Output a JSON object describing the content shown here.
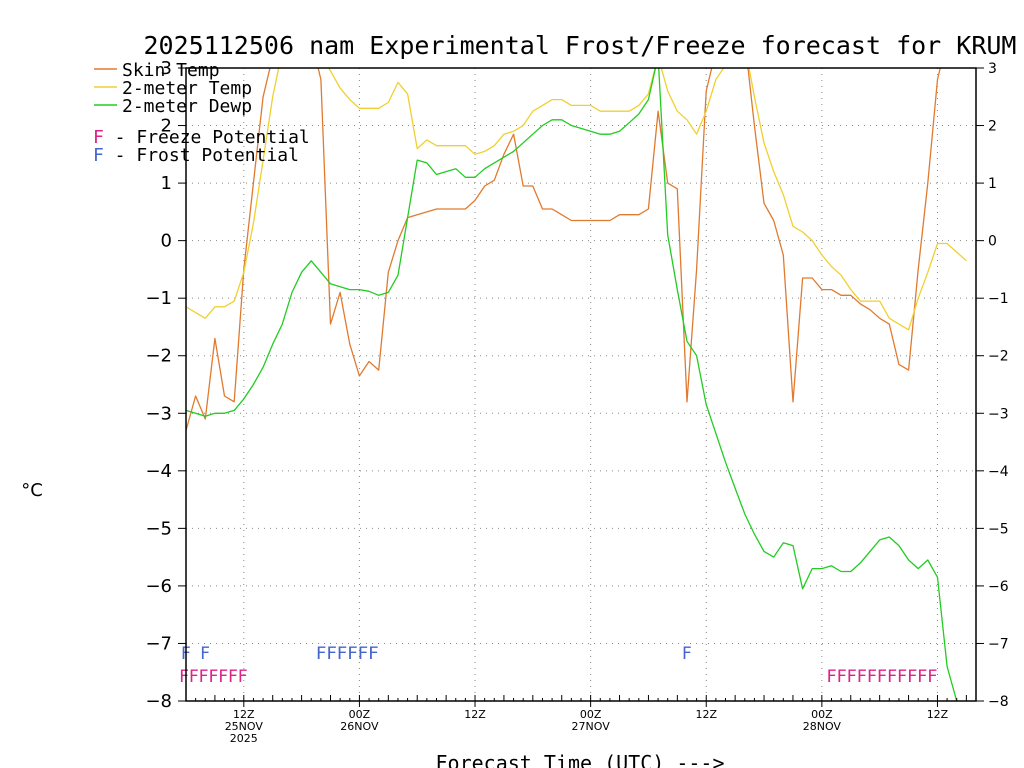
{
  "chart_data": {
    "type": "line",
    "title": "2025112506 nam Experimental Frost/Freeze forecast for KRUM",
    "ylabel": "°C",
    "xlabel": "Forecast Time (UTC) --->",
    "ylim": [
      -8,
      3
    ],
    "xlim": [
      0,
      82
    ],
    "y_ticks": [
      3,
      2,
      1,
      0,
      -1,
      -2,
      -3,
      -4,
      -5,
      -6,
      -7,
      -8
    ],
    "x_ticks": [
      {
        "hour": 6,
        "lines": [
          "12Z",
          "25NOV",
          "2025"
        ]
      },
      {
        "hour": 18,
        "lines": [
          "00Z",
          "26NOV"
        ]
      },
      {
        "hour": 30,
        "lines": [
          "12Z"
        ]
      },
      {
        "hour": 42,
        "lines": [
          "00Z",
          "27NOV"
        ]
      },
      {
        "hour": 54,
        "lines": [
          "12Z"
        ]
      },
      {
        "hour": 66,
        "lines": [
          "00Z",
          "28NOV"
        ]
      },
      {
        "hour": 78,
        "lines": [
          "12Z"
        ]
      }
    ],
    "legend": [
      {
        "label": "Skin Temp",
        "color": "#e07a2e"
      },
      {
        "label": "2-meter Temp",
        "color": "#f0d030"
      },
      {
        "label": "2-meter Dewp",
        "color": "#22cc22"
      }
    ],
    "symbol_legend": [
      {
        "symbol": "F",
        "label": " - Freeze Potential",
        "color": "#dd2288"
      },
      {
        "symbol": "F",
        "label": " - Frost Potential",
        "color": "#4466cc"
      }
    ],
    "series": [
      {
        "name": "Skin Temp",
        "color": "#e07a2e",
        "points": [
          [
            0,
            -3.3
          ],
          [
            1,
            -2.7
          ],
          [
            2,
            -3.1
          ],
          [
            3,
            -1.7
          ],
          [
            4,
            -2.7
          ],
          [
            5,
            -2.8
          ],
          [
            6,
            -0.5
          ],
          [
            7,
            1.0
          ],
          [
            8,
            2.5
          ],
          [
            9,
            3.2
          ],
          [
            10,
            3.4
          ],
          [
            11,
            3.5
          ],
          [
            12,
            3.5
          ],
          [
            13,
            3.5
          ],
          [
            14,
            2.8
          ],
          [
            15,
            -1.45
          ],
          [
            16,
            -0.9
          ],
          [
            17,
            -1.8
          ],
          [
            18,
            -2.35
          ],
          [
            19,
            -2.1
          ],
          [
            20,
            -2.25
          ],
          [
            21,
            -0.55
          ],
          [
            22,
            0.0
          ],
          [
            23,
            0.4
          ],
          [
            24,
            0.45
          ],
          [
            25,
            0.5
          ],
          [
            26,
            0.55
          ],
          [
            27,
            0.55
          ],
          [
            28,
            0.55
          ],
          [
            29,
            0.55
          ],
          [
            30,
            0.7
          ],
          [
            31,
            0.95
          ],
          [
            32,
            1.05
          ],
          [
            33,
            1.5
          ],
          [
            34,
            1.85
          ],
          [
            35,
            0.95
          ],
          [
            36,
            0.95
          ],
          [
            37,
            0.55
          ],
          [
            38,
            0.55
          ],
          [
            39,
            0.45
          ],
          [
            40,
            0.35
          ],
          [
            41,
            0.35
          ],
          [
            42,
            0.35
          ],
          [
            43,
            0.35
          ],
          [
            44,
            0.35
          ],
          [
            45,
            0.45
          ],
          [
            46,
            0.45
          ],
          [
            47,
            0.45
          ],
          [
            48,
            0.55
          ],
          [
            49,
            2.25
          ],
          [
            50,
            1.0
          ],
          [
            51,
            0.9
          ],
          [
            52,
            -2.8
          ],
          [
            53,
            -0.5
          ],
          [
            54,
            2.6
          ],
          [
            55,
            3.3
          ],
          [
            56,
            3.5
          ],
          [
            57,
            3.5
          ],
          [
            58,
            3.5
          ],
          [
            59,
            2.0
          ],
          [
            60,
            0.65
          ],
          [
            61,
            0.35
          ],
          [
            62,
            -0.25
          ],
          [
            63,
            -2.8
          ],
          [
            64,
            -0.65
          ],
          [
            65,
            -0.65
          ],
          [
            66,
            -0.85
          ],
          [
            67,
            -0.85
          ],
          [
            68,
            -0.95
          ],
          [
            69,
            -0.95
          ],
          [
            70,
            -1.1
          ],
          [
            71,
            -1.2
          ],
          [
            72,
            -1.35
          ],
          [
            73,
            -1.45
          ],
          [
            74,
            -2.15
          ],
          [
            75,
            -2.25
          ],
          [
            76,
            -0.5
          ],
          [
            77,
            1.0
          ],
          [
            78,
            2.8
          ],
          [
            79,
            3.5
          ],
          [
            80,
            3.5
          ],
          [
            81,
            3.5
          ],
          [
            82,
            3.5
          ]
        ]
      },
      {
        "name": "2-meter Temp",
        "color": "#f0d030",
        "points": [
          [
            0,
            -1.15
          ],
          [
            1,
            -1.25
          ],
          [
            2,
            -1.35
          ],
          [
            3,
            -1.15
          ],
          [
            4,
            -1.15
          ],
          [
            5,
            -1.05
          ],
          [
            6,
            -0.55
          ],
          [
            7,
            0.3
          ],
          [
            8,
            1.4
          ],
          [
            9,
            2.5
          ],
          [
            10,
            3.3
          ],
          [
            11,
            3.5
          ],
          [
            12,
            3.5
          ],
          [
            13,
            3.5
          ],
          [
            14,
            3.2
          ],
          [
            15,
            2.95
          ],
          [
            16,
            2.65
          ],
          [
            17,
            2.45
          ],
          [
            18,
            2.3
          ],
          [
            19,
            2.3
          ],
          [
            20,
            2.3
          ],
          [
            21,
            2.4
          ],
          [
            22,
            2.75
          ],
          [
            23,
            2.55
          ],
          [
            24,
            1.6
          ],
          [
            25,
            1.75
          ],
          [
            26,
            1.65
          ],
          [
            27,
            1.65
          ],
          [
            28,
            1.65
          ],
          [
            29,
            1.65
          ],
          [
            30,
            1.5
          ],
          [
            31,
            1.55
          ],
          [
            32,
            1.65
          ],
          [
            33,
            1.85
          ],
          [
            34,
            1.9
          ],
          [
            35,
            2.0
          ],
          [
            36,
            2.25
          ],
          [
            37,
            2.35
          ],
          [
            38,
            2.45
          ],
          [
            39,
            2.45
          ],
          [
            40,
            2.35
          ],
          [
            41,
            2.35
          ],
          [
            42,
            2.35
          ],
          [
            43,
            2.25
          ],
          [
            44,
            2.25
          ],
          [
            45,
            2.25
          ],
          [
            46,
            2.25
          ],
          [
            47,
            2.35
          ],
          [
            48,
            2.55
          ],
          [
            49,
            3.2
          ],
          [
            50,
            2.6
          ],
          [
            51,
            2.25
          ],
          [
            52,
            2.1
          ],
          [
            53,
            1.85
          ],
          [
            54,
            2.25
          ],
          [
            55,
            2.8
          ],
          [
            56,
            3.05
          ],
          [
            57,
            3.3
          ],
          [
            58,
            3.4
          ],
          [
            59,
            2.5
          ],
          [
            60,
            1.7
          ],
          [
            61,
            1.2
          ],
          [
            62,
            0.8
          ],
          [
            63,
            0.25
          ],
          [
            64,
            0.15
          ],
          [
            65,
            0.0
          ],
          [
            66,
            -0.25
          ],
          [
            67,
            -0.45
          ],
          [
            68,
            -0.6
          ],
          [
            69,
            -0.85
          ],
          [
            70,
            -1.05
          ],
          [
            71,
            -1.05
          ],
          [
            72,
            -1.05
          ],
          [
            73,
            -1.35
          ],
          [
            74,
            -1.45
          ],
          [
            75,
            -1.55
          ],
          [
            76,
            -1.0
          ],
          [
            77,
            -0.55
          ],
          [
            78,
            -0.05
          ],
          [
            79,
            -0.05
          ],
          [
            80,
            -0.2
          ],
          [
            81,
            -0.35
          ]
        ]
      },
      {
        "name": "2-meter Dewp",
        "color": "#22cc22",
        "points": [
          [
            0,
            -2.95
          ],
          [
            1,
            -3.0
          ],
          [
            2,
            -3.05
          ],
          [
            3,
            -3.0
          ],
          [
            4,
            -3.0
          ],
          [
            5,
            -2.95
          ],
          [
            6,
            -2.75
          ],
          [
            7,
            -2.5
          ],
          [
            8,
            -2.2
          ],
          [
            9,
            -1.8
          ],
          [
            10,
            -1.45
          ],
          [
            11,
            -0.9
          ],
          [
            12,
            -0.55
          ],
          [
            13,
            -0.35
          ],
          [
            14,
            -0.55
          ],
          [
            15,
            -0.75
          ],
          [
            16,
            -0.8
          ],
          [
            17,
            -0.85
          ],
          [
            18,
            -0.85
          ],
          [
            19,
            -0.88
          ],
          [
            20,
            -0.95
          ],
          [
            21,
            -0.9
          ],
          [
            22,
            -0.6
          ],
          [
            23,
            0.4
          ],
          [
            24,
            1.4
          ],
          [
            25,
            1.35
          ],
          [
            26,
            1.15
          ],
          [
            27,
            1.2
          ],
          [
            28,
            1.25
          ],
          [
            29,
            1.1
          ],
          [
            30,
            1.1
          ],
          [
            31,
            1.25
          ],
          [
            32,
            1.35
          ],
          [
            33,
            1.45
          ],
          [
            34,
            1.55
          ],
          [
            35,
            1.7
          ],
          [
            36,
            1.85
          ],
          [
            37,
            2.0
          ],
          [
            38,
            2.1
          ],
          [
            39,
            2.1
          ],
          [
            40,
            2.0
          ],
          [
            41,
            1.95
          ],
          [
            42,
            1.9
          ],
          [
            43,
            1.85
          ],
          [
            44,
            1.85
          ],
          [
            45,
            1.9
          ],
          [
            46,
            2.05
          ],
          [
            47,
            2.2
          ],
          [
            48,
            2.45
          ],
          [
            49,
            3.2
          ],
          [
            50,
            0.1
          ],
          [
            51,
            -0.85
          ],
          [
            52,
            -1.75
          ],
          [
            53,
            -2.0
          ],
          [
            54,
            -2.85
          ],
          [
            55,
            -3.35
          ],
          [
            56,
            -3.85
          ],
          [
            57,
            -4.3
          ],
          [
            58,
            -4.75
          ],
          [
            59,
            -5.1
          ],
          [
            60,
            -5.4
          ],
          [
            61,
            -5.5
          ],
          [
            62,
            -5.25
          ],
          [
            63,
            -5.3
          ],
          [
            64,
            -6.05
          ],
          [
            65,
            -5.7
          ],
          [
            66,
            -5.7
          ],
          [
            67,
            -5.65
          ],
          [
            68,
            -5.75
          ],
          [
            69,
            -5.75
          ],
          [
            70,
            -5.6
          ],
          [
            71,
            -5.4
          ],
          [
            72,
            -5.2
          ],
          [
            73,
            -5.15
          ],
          [
            74,
            -5.3
          ],
          [
            75,
            -5.55
          ],
          [
            76,
            -5.7
          ],
          [
            77,
            -5.55
          ],
          [
            78,
            -5.85
          ],
          [
            79,
            -7.4
          ],
          [
            80,
            -8.0
          ]
        ]
      }
    ],
    "markers": [
      {
        "type": "Frost Potential",
        "color": "#4466cc",
        "y": -7.15,
        "text": "F",
        "hours": [
          0,
          2
        ]
      },
      {
        "type": "Frost Potential",
        "color": "#4466cc",
        "y": -7.15,
        "text": "FFFFFF",
        "hours": [
          13.5,
          20
        ]
      },
      {
        "type": "Frost Potential",
        "color": "#4466cc",
        "y": -7.15,
        "text": "F",
        "hours": [
          52
        ]
      },
      {
        "type": "Freeze Potential",
        "color": "#dd2288",
        "y": -7.55,
        "text": "FFFFFFF",
        "hours": [
          -0.7,
          6.4
        ]
      },
      {
        "type": "Freeze Potential",
        "color": "#dd2288",
        "y": -7.55,
        "text": "FFFFFFFFFFF",
        "hours": [
          66.5,
          78
        ]
      }
    ]
  }
}
